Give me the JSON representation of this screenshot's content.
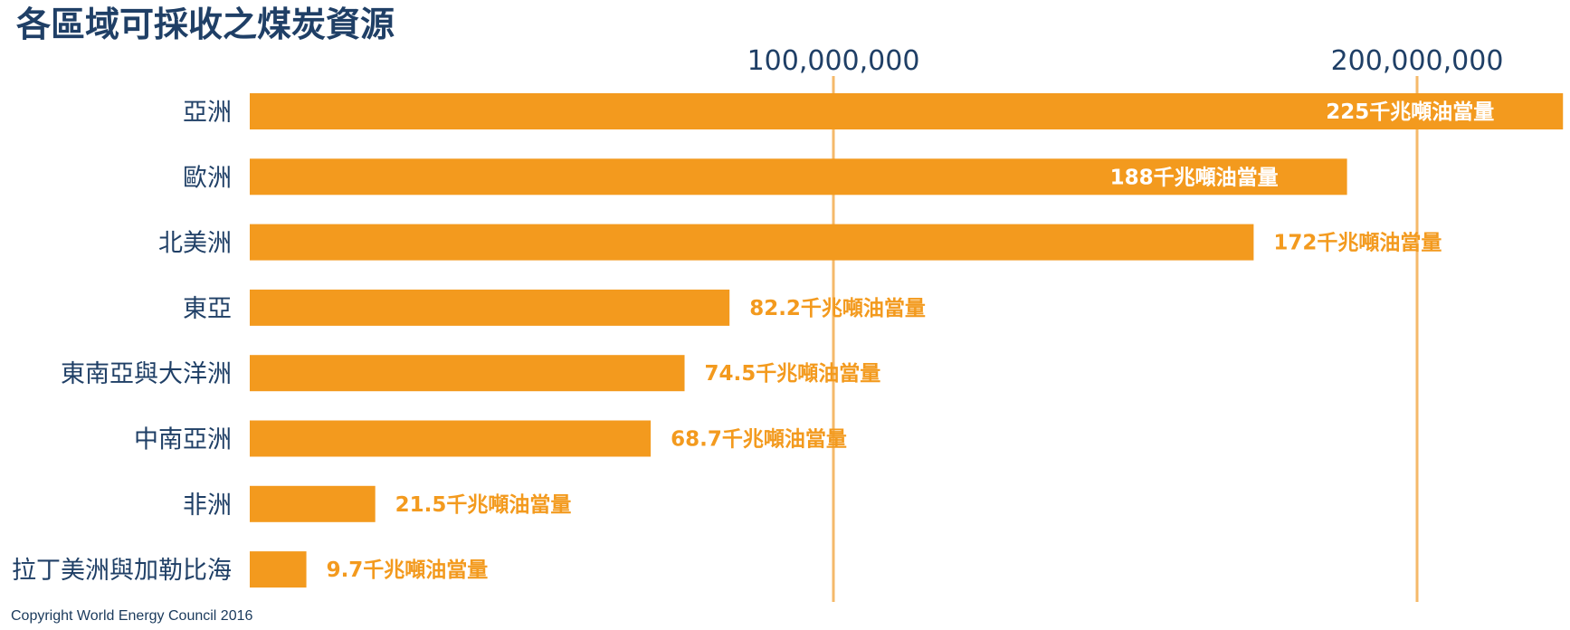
{
  "colors": {
    "bar": "#f39a1e",
    "label_inside": "#ffffff",
    "label_outside": "#f39a1e",
    "text": "#1f3f66",
    "gridline": "#f5b96a"
  },
  "footer": {
    "copyright": "Copyright World Energy Council 2016"
  },
  "chart_data": {
    "type": "bar",
    "orientation": "horizontal",
    "title": "各區域可採收之煤炭資源",
    "xlim": [
      -100000000,
      225000000
    ],
    "xticks": [
      {
        "value": 100000000,
        "label": "100,000,000"
      },
      {
        "value": 200000000,
        "label": "200,000,000"
      }
    ],
    "categories": [
      "亞洲",
      "歐洲",
      "北美洲",
      "東亞",
      "東南亞與大洋洲",
      "中南亞洲",
      "非洲",
      "拉丁美洲與加勒比海"
    ],
    "values": [
      225000000,
      188000000,
      172000000,
      82200000,
      74500000,
      68700000,
      21500000,
      9700000
    ],
    "value_labels": [
      "225千兆噸油當量",
      "188千兆噸油當量",
      "172千兆噸油當量",
      "82.2千兆噸油當量",
      "74.5千兆噸油當量",
      "68.7千兆噸油當量",
      "21.5千兆噸油當量",
      "9.7千兆噸油當量"
    ],
    "grid": true,
    "legend": "none"
  }
}
